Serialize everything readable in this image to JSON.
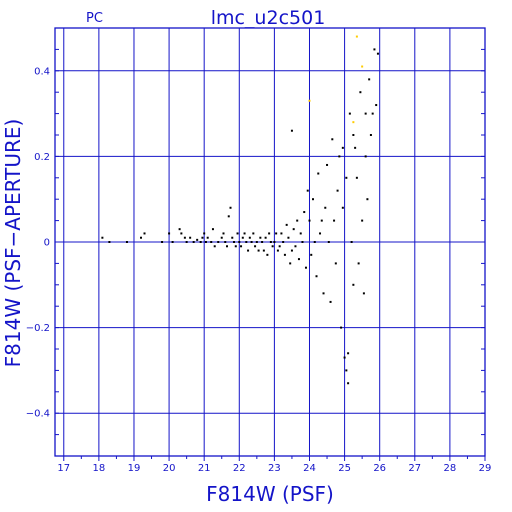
{
  "chart_data": {
    "type": "scatter",
    "panel": "PC",
    "title": "lmc_u2c501",
    "xlabel": "F814W (PSF)",
    "ylabel": "F814W (PSF−APERTURE)",
    "xlim": [
      16.75,
      29.0
    ],
    "ylim": [
      -0.5,
      0.5
    ],
    "x_ticks": [
      17,
      18,
      19,
      20,
      21,
      22,
      23,
      24,
      25,
      26,
      27,
      28,
      29
    ],
    "x_tick_labels": [
      "17",
      "18",
      "19",
      "20",
      "21",
      "22",
      "23",
      "24",
      "25",
      "26",
      "27",
      "28",
      "29"
    ],
    "y_ticks": [
      0.4,
      0.2,
      0,
      -0.2,
      -0.4
    ],
    "y_tick_labels": [
      "0.4",
      "0.2",
      "0",
      "−0.2",
      "−0.4"
    ],
    "grid": true,
    "colors": {
      "axis": "#1414c8",
      "points": "#000000",
      "highlight": "#ffcc00",
      "background": "#ffffff"
    },
    "series": [
      {
        "color": "#000000",
        "points": [
          [
            18.1,
            0.01
          ],
          [
            18.3,
            0.0
          ],
          [
            18.8,
            0.0
          ],
          [
            19.2,
            0.01
          ],
          [
            19.3,
            0.02
          ],
          [
            19.8,
            0.0
          ],
          [
            20.0,
            0.02
          ],
          [
            20.1,
            0.0
          ],
          [
            20.3,
            0.03
          ],
          [
            20.35,
            0.02
          ],
          [
            20.45,
            0.01
          ],
          [
            20.5,
            0.0
          ],
          [
            20.6,
            0.01
          ],
          [
            20.7,
            0.0
          ],
          [
            20.8,
            0.005
          ],
          [
            20.9,
            0.0
          ],
          [
            20.95,
            0.01
          ],
          [
            21.0,
            0.02
          ],
          [
            21.05,
            0.0
          ],
          [
            21.1,
            0.01
          ],
          [
            21.2,
            0.0
          ],
          [
            21.25,
            0.03
          ],
          [
            21.3,
            -0.01
          ],
          [
            21.4,
            0.0
          ],
          [
            21.5,
            0.01
          ],
          [
            21.55,
            0.02
          ],
          [
            21.6,
            0.0
          ],
          [
            21.65,
            -0.01
          ],
          [
            21.7,
            0.06
          ],
          [
            21.75,
            0.08
          ],
          [
            21.8,
            0.01
          ],
          [
            21.85,
            0.0
          ],
          [
            21.9,
            -0.01
          ],
          [
            21.95,
            0.02
          ],
          [
            22.0,
            0.0
          ],
          [
            22.05,
            -0.01
          ],
          [
            22.1,
            0.01
          ],
          [
            22.15,
            0.02
          ],
          [
            22.2,
            0.0
          ],
          [
            22.25,
            -0.02
          ],
          [
            22.3,
            0.01
          ],
          [
            22.35,
            0.0
          ],
          [
            22.4,
            0.02
          ],
          [
            22.45,
            -0.01
          ],
          [
            22.5,
            0.0
          ],
          [
            22.55,
            -0.02
          ],
          [
            22.6,
            0.01
          ],
          [
            22.65,
            0.0
          ],
          [
            22.7,
            -0.02
          ],
          [
            22.75,
            0.01
          ],
          [
            22.8,
            -0.03
          ],
          [
            22.85,
            0.02
          ],
          [
            22.9,
            0.0
          ],
          [
            22.95,
            -0.01
          ],
          [
            23.0,
            0.0
          ],
          [
            23.05,
            0.02
          ],
          [
            23.1,
            -0.02
          ],
          [
            23.15,
            -0.01
          ],
          [
            23.2,
            0.02
          ],
          [
            23.25,
            0.0
          ],
          [
            23.3,
            -0.03
          ],
          [
            23.35,
            0.04
          ],
          [
            23.4,
            0.01
          ],
          [
            23.45,
            -0.05
          ],
          [
            23.5,
            -0.02
          ],
          [
            23.55,
            0.03
          ],
          [
            23.6,
            -0.01
          ],
          [
            23.65,
            0.05
          ],
          [
            23.7,
            -0.04
          ],
          [
            23.75,
            0.02
          ],
          [
            23.8,
            0.0
          ],
          [
            23.85,
            0.07
          ],
          [
            23.9,
            -0.06
          ],
          [
            23.95,
            0.12
          ],
          [
            24.0,
            0.05
          ],
          [
            24.05,
            -0.03
          ],
          [
            24.1,
            0.1
          ],
          [
            24.15,
            0.0
          ],
          [
            24.2,
            -0.08
          ],
          [
            24.25,
            0.16
          ],
          [
            24.3,
            0.02
          ],
          [
            24.35,
            0.05
          ],
          [
            24.4,
            -0.12
          ],
          [
            24.45,
            0.08
          ],
          [
            24.5,
            0.18
          ],
          [
            24.55,
            0.0
          ],
          [
            24.6,
            -0.14
          ],
          [
            24.65,
            0.24
          ],
          [
            24.7,
            0.05
          ],
          [
            24.75,
            -0.05
          ],
          [
            24.8,
            0.12
          ],
          [
            24.85,
            0.2
          ],
          [
            24.9,
            -0.2
          ],
          [
            24.95,
            0.08
          ],
          [
            25.0,
            -0.27
          ],
          [
            25.05,
            0.15
          ],
          [
            25.1,
            -0.33
          ],
          [
            25.15,
            0.3
          ],
          [
            25.2,
            0.0
          ],
          [
            25.25,
            -0.1
          ],
          [
            25.3,
            0.22
          ],
          [
            25.35,
            0.15
          ],
          [
            25.4,
            -0.05
          ],
          [
            25.45,
            0.35
          ],
          [
            25.5,
            0.05
          ],
          [
            25.55,
            -0.12
          ],
          [
            25.6,
            0.2
          ],
          [
            25.65,
            0.1
          ],
          [
            25.7,
            0.38
          ],
          [
            25.75,
            0.25
          ],
          [
            25.8,
            0.3
          ],
          [
            25.85,
            0.45
          ],
          [
            25.9,
            0.32
          ],
          [
            25.95,
            0.44
          ],
          [
            23.5,
            0.26
          ],
          [
            25.05,
            -0.3
          ],
          [
            25.1,
            -0.26
          ],
          [
            24.95,
            0.22
          ],
          [
            25.25,
            0.25
          ],
          [
            25.6,
            0.3
          ]
        ]
      },
      {
        "color": "#ffcc00",
        "points": [
          [
            24.0,
            0.33
          ],
          [
            25.25,
            0.28
          ],
          [
            25.35,
            0.48
          ],
          [
            25.5,
            0.41
          ]
        ]
      }
    ]
  }
}
